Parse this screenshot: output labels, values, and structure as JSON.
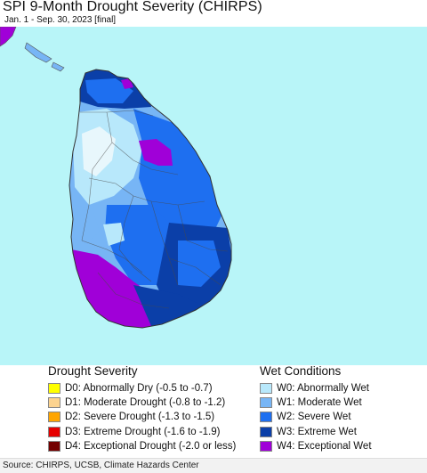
{
  "title": "SPI 9-Month Drought Severity (CHIRPS)",
  "subtitle": "Jan. 1 - Sep. 30, 2023 [final]",
  "map": {
    "ocean_color": "#b8f5f8",
    "regions": [
      {
        "name": "north-peninsula",
        "category": "W3"
      },
      {
        "name": "north-central-plains",
        "category": "W0"
      },
      {
        "name": "west-coast",
        "category": "W1"
      },
      {
        "name": "east-coast",
        "category": "W2"
      },
      {
        "name": "central-hills",
        "category": "W2"
      },
      {
        "name": "southeast",
        "category": "W3"
      },
      {
        "name": "southwest",
        "category": "W4"
      },
      {
        "name": "northeast-patch",
        "category": "W4"
      }
    ]
  },
  "legend": {
    "drought_title": "Drought Severity",
    "wet_title": "Wet Conditions",
    "drought": [
      {
        "code": "D0",
        "label": "D0: Abnormally Dry (-0.5 to -0.7)",
        "color": "#ffff00"
      },
      {
        "code": "D1",
        "label": "D1: Moderate Drought (-0.8 to -1.2)",
        "color": "#fcd38f"
      },
      {
        "code": "D2",
        "label": "D2: Severe Drought (-1.3 to -1.5)",
        "color": "#ffa500"
      },
      {
        "code": "D3",
        "label": "D3: Extreme Drought (-1.6 to -1.9)",
        "color": "#e60000"
      },
      {
        "code": "D4",
        "label": "D4: Exceptional Drought (-2.0 or less)",
        "color": "#730000"
      }
    ],
    "wet": [
      {
        "code": "W0",
        "label": "W0: Abnormally Wet",
        "color": "#b8e8fb"
      },
      {
        "code": "W1",
        "label": "W1: Moderate Wet",
        "color": "#77b5f5"
      },
      {
        "code": "W2",
        "label": "W2: Severe Wet",
        "color": "#1e6ff0"
      },
      {
        "code": "W3",
        "label": "W3: Extreme Wet",
        "color": "#0b3fa8"
      },
      {
        "code": "W4",
        "label": "W4: Exceptional Wet",
        "color": "#a000d8"
      }
    ]
  },
  "source": "Source: CHIRPS, UCSB, Climate Hazards Center"
}
